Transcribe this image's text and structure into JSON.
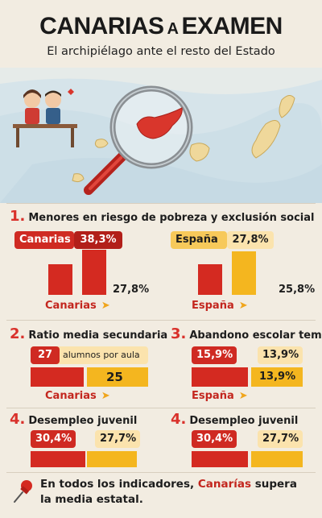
{
  "header": {
    "title_part1": "CANARIAS",
    "title_part2": "A",
    "title_part3": "EXAMEN",
    "subtitle": "El archipiélago ante el resto del Estado"
  },
  "sections": {
    "s1": {
      "num": "1.",
      "title": "Menores en riesgo de pobreza y exclusión social",
      "canarias_name": "Canarias",
      "canarias_value": "38,3%",
      "espana_name": "España",
      "espana_value": "27,8%",
      "left_ref": "27,8%",
      "right_ref": "25,8%",
      "left_label": "Canarias",
      "right_label": "España"
    },
    "s2": {
      "num": "2.",
      "title": "Ratio media secundaria",
      "value": "27",
      "unit": "alumnos por aula",
      "ref": "25",
      "label": "Canarias"
    },
    "s3": {
      "num": "3.",
      "title": "Abandono escolar tempran",
      "value_a": "15,9%",
      "value_b": "13,9%",
      "ref": "13,9%",
      "label": "España"
    },
    "s4a": {
      "num": "4.",
      "title": "Desempleo juvenil",
      "value_a": "30,4%",
      "value_b": "27,7%"
    },
    "s4b": {
      "num": "4.",
      "title": "Desempleo juvenil",
      "value_a": "30,4%",
      "value_b": "27,7%"
    }
  },
  "footer": {
    "line1_pre": "En todos los indicadores, ",
    "line1_hl": "Canarías",
    "line1_post": " supera",
    "line2": "la media estatal."
  },
  "colors": {
    "red": "#d42a21",
    "yellow": "#f4b61f",
    "background": "#f2ece1"
  },
  "icons": [
    "magnifier-icon",
    "students-desk-icon",
    "pushpin-icon",
    "arrow-right-icon"
  ]
}
